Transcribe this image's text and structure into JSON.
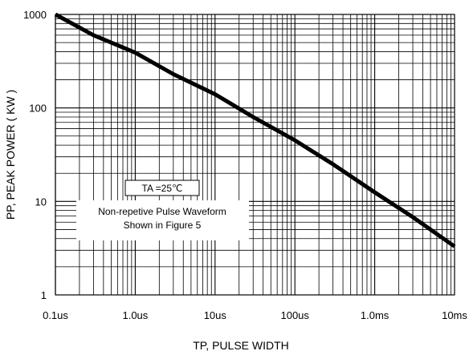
{
  "chart_data": {
    "type": "line",
    "scale": {
      "x": "log",
      "y": "log"
    },
    "grid": true,
    "xlabel": "TP, PULSE  WIDTH",
    "ylabel": "PP, PEAK  POWER ( KW )",
    "xlim": [
      1e-07,
      0.01
    ],
    "ylim": [
      1,
      1000
    ],
    "x_ticks": [
      {
        "value": 1e-07,
        "label": "0.1us"
      },
      {
        "value": 1e-06,
        "label": "1.0us"
      },
      {
        "value": 1e-05,
        "label": "10us"
      },
      {
        "value": 0.0001,
        "label": "100us"
      },
      {
        "value": 0.001,
        "label": "1.0ms"
      },
      {
        "value": 0.01,
        "label": "10ms"
      }
    ],
    "y_ticks": [
      {
        "value": 1,
        "label": "1"
      },
      {
        "value": 10,
        "label": "10"
      },
      {
        "value": 100,
        "label": "100"
      },
      {
        "value": 1000,
        "label": "1000"
      }
    ],
    "series": [
      {
        "x": [
          1e-07,
          3e-07,
          1e-06,
          3e-06,
          1e-05,
          3e-05,
          0.0001,
          0.0003,
          0.001,
          0.003,
          0.01
        ],
        "y": [
          1000,
          600,
          390,
          230,
          140,
          80,
          45,
          25,
          12.5,
          6.8,
          3.3
        ],
        "color": "#000000"
      }
    ],
    "annotation": {
      "condition": "TA =25℃",
      "lines": [
        "Non-repetive Pulse Waveform",
        "Shown in Figure 5"
      ]
    }
  }
}
